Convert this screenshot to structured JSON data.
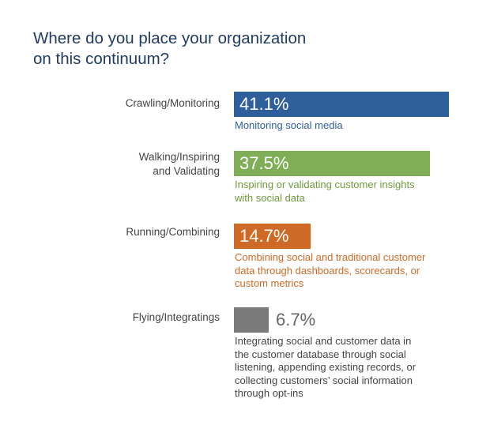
{
  "chart_data": {
    "type": "bar",
    "orientation": "horizontal",
    "title": "Where do you place your organization\non this continuum?",
    "unit": "%",
    "xlim": [
      0,
      41.1
    ],
    "categories": [
      "Crawling/Monitoring",
      "Walking/Inspiring\nand Validating",
      "Running/Combining",
      "Flying/Integratings"
    ],
    "values": [
      41.1,
      37.5,
      14.7,
      6.7
    ],
    "value_labels": [
      "41.1%",
      "37.5%",
      "14.7%",
      "6.7%"
    ],
    "descriptions": [
      "Monitoring social media",
      "Inspiring or validating customer insights\nwith social data",
      "Combining social and traditional customer\ndata through dashboards, scorecards, or\ncustom metrics",
      "Integrating social and customer data in\nthe customer database through social\nlistening, appending existing records, or\ncollecting customers’ social information\nthrough opt-ins"
    ],
    "colors": [
      "#2e5f9a",
      "#7fae56",
      "#cf6a26",
      "#7a7a7a"
    ],
    "description_colors": [
      "#2e5f9a",
      "#6f9a3c",
      "#cf6a26",
      "#444444"
    ],
    "grid": false,
    "legend": "none"
  }
}
